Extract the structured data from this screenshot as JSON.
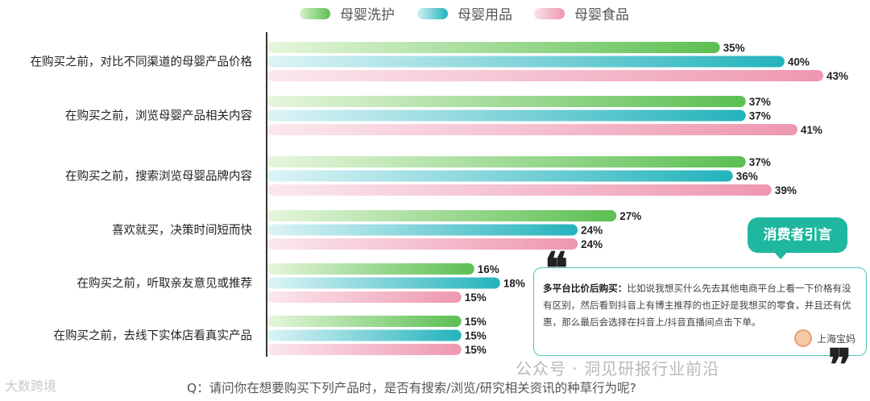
{
  "chart_data": {
    "type": "bar",
    "orientation": "horizontal",
    "categories": [
      "在购买之前，对比不同渠道的母婴产品价格",
      "在购买之前，浏览母婴产品相关内容",
      "在购买之前，搜索浏览母婴品牌内容",
      "喜欢就买，决策时间短而快",
      "在购买之前，听取亲友意见或推荐",
      "在购买之前，去线下实体店看真实产品"
    ],
    "series": [
      {
        "name": "母婴洗护",
        "values": [
          35,
          37,
          37,
          27,
          16,
          15
        ],
        "labels": [
          "35%",
          "37%",
          "37%",
          "27%",
          "16%",
          "15%"
        ],
        "color": "#5cbf52",
        "color_light": "#e6f6dc"
      },
      {
        "name": "母婴用品",
        "values": [
          40,
          37,
          36,
          24,
          18,
          15
        ],
        "labels": [
          "40%",
          "37%",
          "36%",
          "24%",
          "18%",
          "15%"
        ],
        "color": "#23b3bc",
        "color_light": "#ddf4f6"
      },
      {
        "name": "母婴食品",
        "values": [
          43,
          41,
          39,
          24,
          15,
          15
        ],
        "labels": [
          "43%",
          "41%",
          "39%",
          "24%",
          "15%",
          "15%"
        ],
        "color": "#ee97b0",
        "color_light": "#fbe8ee"
      }
    ],
    "xlim": [
      0,
      43
    ],
    "legend_position": "top-center",
    "grid": false
  },
  "quote": {
    "tag": "消费者引言",
    "lead": "多平台比价后购买：",
    "text": "比如说我想买什么先去其他电商平台上看一下价格有没有区别，然后看到抖音上有博主推荐的也正好是我想买的零食，并且还有优惠，那么最后会选择在抖音上/抖音直播间点击下单。",
    "author": "上海宝妈",
    "open_mark": "❝",
    "close_mark": "❞"
  },
  "question": "Q：请问你在想要购买下列产品时，是否有搜索/浏览/研究相关资讯的种草行为呢?",
  "watermark_left": "大数跨境",
  "watermark_right": "公众号 · 洞见研报行业前沿"
}
